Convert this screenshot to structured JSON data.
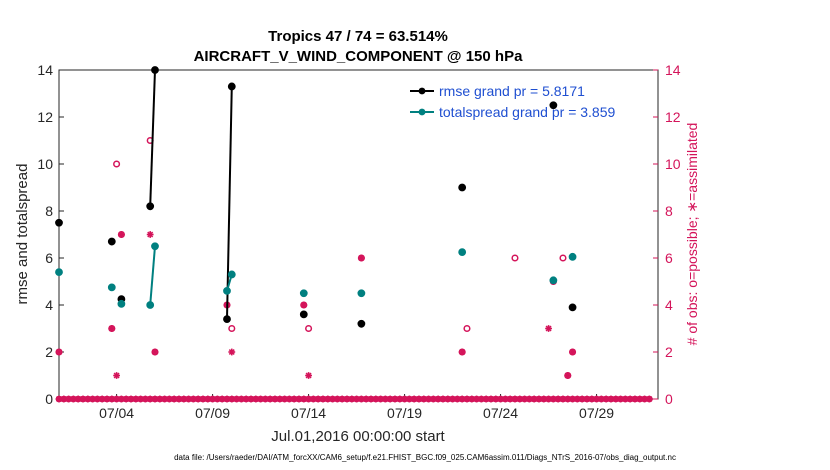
{
  "chart_data": {
    "type": "line",
    "title": "Tropics 47 / 74 = 63.514%",
    "subtitle": "AIRCRAFT_V_WIND_COMPONENT @ 150 hPa",
    "xlabel": "Jul.01,2016 00:00:00 start",
    "ylabel": "rmse and totalspread",
    "ylabel_right": "# of obs: o=possible; ∗=assimilated",
    "xlim": [
      1,
      32.2
    ],
    "ylim": [
      0,
      14
    ],
    "ylim_right": [
      0,
      14
    ],
    "x_tick_labels": [
      {
        "x": 4,
        "label": "07/04"
      },
      {
        "x": 9,
        "label": "07/09"
      },
      {
        "x": 14,
        "label": "07/14"
      },
      {
        "x": 19,
        "label": "07/19"
      },
      {
        "x": 24,
        "label": "07/24"
      },
      {
        "x": 29,
        "label": "07/29"
      }
    ],
    "y_ticks": [
      0,
      2,
      4,
      6,
      8,
      10,
      12,
      14
    ],
    "y_ticks_right": [
      0,
      2,
      4,
      6,
      8,
      10,
      12,
      14
    ],
    "legend_position": "top-right",
    "series": [
      {
        "name": "rmse grand pr = 5.8171",
        "color": "#000000",
        "points": [
          [
            1,
            7.5
          ],
          [
            3.75,
            6.7
          ],
          [
            4.25,
            4.25
          ],
          [
            5.75,
            8.2
          ],
          [
            6.0,
            14.0
          ],
          [
            9.75,
            3.4
          ],
          [
            10.0,
            13.3
          ],
          [
            13.75,
            3.6
          ],
          [
            16.75,
            3.2
          ],
          [
            22.0,
            9.0
          ],
          [
            26.75,
            12.5
          ],
          [
            27.75,
            3.9
          ]
        ]
      },
      {
        "name": "totalspread grand pr = 3.859",
        "color": "#008080",
        "points": [
          [
            1,
            5.4
          ],
          [
            3.75,
            4.75
          ],
          [
            4.25,
            4.05
          ],
          [
            5.75,
            4.0
          ],
          [
            6.0,
            6.5
          ],
          [
            9.75,
            4.6
          ],
          [
            10.0,
            5.3
          ],
          [
            13.75,
            4.5
          ],
          [
            16.75,
            4.5
          ],
          [
            22.0,
            6.25
          ],
          [
            26.75,
            5.05
          ],
          [
            27.75,
            6.05
          ]
        ]
      }
    ],
    "obs_possible": {
      "name": "possible (o)",
      "color": "#d4145a",
      "points": [
        [
          1,
          2
        ],
        [
          3.75,
          3
        ],
        [
          4.0,
          10
        ],
        [
          4.25,
          7
        ],
        [
          5.75,
          11
        ],
        [
          6.0,
          2
        ],
        [
          9.75,
          4
        ],
        [
          10.0,
          3
        ],
        [
          13.75,
          4
        ],
        [
          14.0,
          3
        ],
        [
          16.75,
          6
        ],
        [
          22.0,
          2
        ],
        [
          22.25,
          3
        ],
        [
          24.75,
          6
        ],
        [
          26.75,
          5
        ],
        [
          27.25,
          6
        ],
        [
          27.5,
          1
        ],
        [
          27.75,
          2
        ]
      ]
    },
    "obs_assimilated": {
      "name": "assimilated (∗)",
      "color": "#d4145a",
      "points": [
        [
          1,
          2
        ],
        [
          3.75,
          3
        ],
        [
          4.0,
          1
        ],
        [
          4.25,
          7
        ],
        [
          5.75,
          7
        ],
        [
          6.0,
          2
        ],
        [
          9.75,
          4
        ],
        [
          10.0,
          2
        ],
        [
          13.75,
          4
        ],
        [
          14.0,
          1
        ],
        [
          16.75,
          6
        ],
        [
          22.0,
          2
        ],
        [
          26.75,
          5
        ],
        [
          26.5,
          3
        ],
        [
          27.5,
          1
        ],
        [
          27.75,
          2
        ]
      ]
    },
    "footer": "data file: /Users/raeder/DAI/ATM_forcXX/CAM6_setup/f.e21.FHIST_BGC.f09_025.CAM6assim.011/Diags_NTrS_2016-07/obs_diag_output.nc"
  }
}
